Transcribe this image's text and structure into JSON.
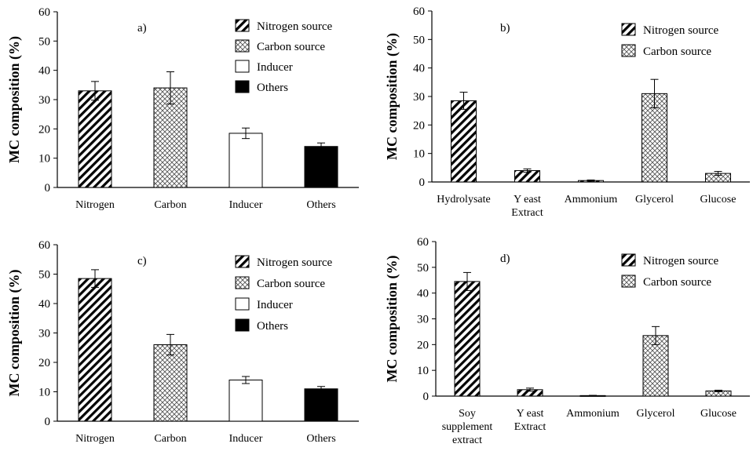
{
  "chart_data": [
    {
      "type": "bar",
      "panel_label": "a)",
      "ylabel": "MC composition (%)",
      "ylim": [
        0,
        60
      ],
      "yticks": [
        "0",
        "10",
        "20",
        "30",
        "40",
        "50",
        "60"
      ],
      "categories": [
        "Nitrogen",
        "Carbon",
        "Inducer",
        "Others"
      ],
      "values": [
        33,
        34,
        18.5,
        14
      ],
      "errors": [
        3.2,
        5.5,
        1.8,
        1.2
      ],
      "fills": [
        "hatch",
        "cross",
        "white",
        "black"
      ],
      "legend": [
        "Nitrogen source",
        "Carbon source",
        "Inducer",
        "Others"
      ],
      "legend_fills": [
        "hatch",
        "cross",
        "white",
        "black"
      ]
    },
    {
      "type": "bar",
      "panel_label": "b)",
      "ylabel": "MC composition (%)",
      "ylim": [
        0,
        60
      ],
      "yticks": [
        "0",
        "10",
        "20",
        "30",
        "40",
        "50",
        "60"
      ],
      "categories": [
        "Hydrolysate",
        "Y east\nExtract",
        "Ammonium",
        "Glycerol",
        "Glucose"
      ],
      "values": [
        28.5,
        4,
        0.5,
        31,
        3
      ],
      "errors": [
        3,
        0.6,
        0.2,
        5,
        0.7
      ],
      "fills": [
        "hatch",
        "hatch",
        "hatch",
        "cross",
        "cross"
      ],
      "legend": [
        "Nitrogen source",
        "Carbon source"
      ],
      "legend_fills": [
        "hatch",
        "cross"
      ]
    },
    {
      "type": "bar",
      "panel_label": "c)",
      "ylabel": "MC composition (%)",
      "ylim": [
        0,
        60
      ],
      "yticks": [
        "0",
        "10",
        "20",
        "30",
        "40",
        "50",
        "60"
      ],
      "categories": [
        "Nitrogen",
        "Carbon",
        "Inducer",
        "Others"
      ],
      "values": [
        48.5,
        26,
        14,
        11
      ],
      "errors": [
        3,
        3.5,
        1.2,
        0.8
      ],
      "fills": [
        "hatch",
        "cross",
        "white",
        "black"
      ],
      "legend": [
        "Nitrogen source",
        "Carbon source",
        "Inducer",
        "Others"
      ],
      "legend_fills": [
        "hatch",
        "cross",
        "white",
        "black"
      ]
    },
    {
      "type": "bar",
      "panel_label": "d)",
      "ylabel": "MC composition (%)",
      "ylim": [
        0,
        60
      ],
      "yticks": [
        "0",
        "10",
        "20",
        "30",
        "40",
        "50",
        "60"
      ],
      "categories": [
        "Soy\nsupplement\nextract",
        "Y east\nExtract",
        "Ammonium",
        "Glycerol",
        "Glucose"
      ],
      "values": [
        44.5,
        2.5,
        0.2,
        23.5,
        2
      ],
      "errors": [
        3.5,
        0.6,
        0.1,
        3.5,
        0.3
      ],
      "fills": [
        "hatch",
        "hatch",
        "hatch",
        "cross",
        "cross"
      ],
      "legend": [
        "Nitrogen source",
        "Carbon source"
      ],
      "legend_fills": [
        "hatch",
        "cross"
      ]
    }
  ]
}
